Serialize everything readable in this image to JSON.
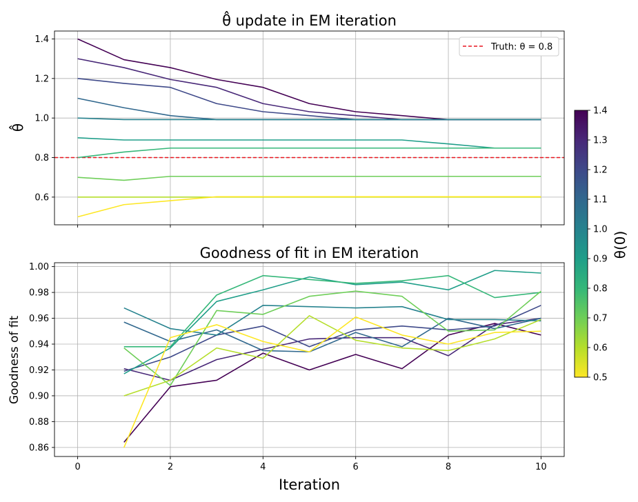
{
  "chart_data": [
    {
      "type": "line",
      "title": "θ̂ update in EM iteration",
      "xlabel": "",
      "ylabel": "θ̂",
      "xlim": [
        -0.5,
        10.5
      ],
      "ylim": [
        0.46,
        1.44
      ],
      "xticks": [
        0,
        2,
        4,
        6,
        8,
        10
      ],
      "yticks": [
        0.6,
        0.8,
        1.0,
        1.2,
        1.4
      ],
      "ytick_labels": [
        "0.6",
        "0.8",
        "1.0",
        "1.2",
        "1.4"
      ],
      "grid": true,
      "legend": {
        "position": "top-right",
        "label": "Truth: θ = 0.8"
      },
      "reference_line": {
        "y": 0.8,
        "color": "#e8141e",
        "style": "dashed"
      },
      "x": [
        0,
        1,
        2,
        3,
        4,
        5,
        6,
        7,
        8,
        9,
        10
      ],
      "series": [
        {
          "theta0": 1.4,
          "values": [
            1.4,
            1.295,
            1.255,
            1.195,
            1.155,
            1.073,
            1.032,
            1.012,
            0.992,
            0.992,
            0.992
          ]
        },
        {
          "theta0": 1.3,
          "values": [
            1.3,
            1.255,
            1.195,
            1.155,
            1.073,
            1.032,
            1.012,
            0.992,
            0.992,
            0.992,
            0.992
          ]
        },
        {
          "theta0": 1.2,
          "values": [
            1.2,
            1.175,
            1.155,
            1.073,
            1.032,
            1.012,
            0.992,
            0.992,
            0.992,
            0.992,
            0.992
          ]
        },
        {
          "theta0": 1.1,
          "values": [
            1.1,
            1.052,
            1.012,
            0.992,
            0.992,
            0.992,
            0.992,
            0.992,
            0.992,
            0.992,
            0.992
          ]
        },
        {
          "theta0": 1.0,
          "values": [
            1.0,
            0.992,
            0.992,
            0.992,
            0.992,
            0.992,
            0.992,
            0.992,
            0.992,
            0.992,
            0.992
          ]
        },
        {
          "theta0": 0.9,
          "values": [
            0.9,
            0.889,
            0.889,
            0.889,
            0.889,
            0.889,
            0.889,
            0.889,
            0.869,
            0.848,
            0.848
          ]
        },
        {
          "theta0": 0.8,
          "values": [
            0.8,
            0.828,
            0.848,
            0.848,
            0.848,
            0.848,
            0.848,
            0.848,
            0.848,
            0.848,
            0.848
          ]
        },
        {
          "theta0": 0.7,
          "values": [
            0.7,
            0.685,
            0.705,
            0.705,
            0.705,
            0.705,
            0.705,
            0.705,
            0.705,
            0.705,
            0.705
          ]
        },
        {
          "theta0": 0.6,
          "values": [
            0.6,
            0.6,
            0.6,
            0.6,
            0.6,
            0.6,
            0.6,
            0.6,
            0.6,
            0.6,
            0.6
          ]
        },
        {
          "theta0": 0.5,
          "values": [
            0.5,
            0.562,
            0.582,
            0.602,
            0.602,
            0.602,
            0.602,
            0.602,
            0.602,
            0.602,
            0.602
          ]
        }
      ]
    },
    {
      "type": "line",
      "title": "Goodness of fit in EM iteration",
      "xlabel": "Iteration",
      "ylabel": "Goodness of fit",
      "xlim": [
        -0.5,
        10.5
      ],
      "ylim": [
        0.853,
        1.003
      ],
      "xticks": [
        0,
        2,
        4,
        6,
        8,
        10
      ],
      "yticks": [
        0.86,
        0.88,
        0.9,
        0.92,
        0.94,
        0.96,
        0.98,
        1.0
      ],
      "ytick_labels": [
        "0.86",
        "0.88",
        "0.90",
        "0.92",
        "0.94",
        "0.96",
        "0.98",
        "1.00"
      ],
      "grid": true,
      "x": [
        1,
        2,
        3,
        4,
        5,
        6,
        7,
        8,
        9,
        10
      ],
      "series": [
        {
          "theta0": 1.4,
          "values": [
            0.864,
            0.907,
            0.912,
            0.933,
            0.92,
            0.932,
            0.921,
            0.947,
            0.956,
            0.947
          ]
        },
        {
          "theta0": 1.3,
          "values": [
            0.921,
            0.912,
            0.928,
            0.936,
            0.944,
            0.945,
            0.945,
            0.931,
            0.955,
            0.96
          ]
        },
        {
          "theta0": 1.2,
          "values": [
            0.919,
            0.93,
            0.947,
            0.954,
            0.938,
            0.951,
            0.954,
            0.951,
            0.954,
            0.97
          ]
        },
        {
          "theta0": 1.1,
          "values": [
            0.957,
            0.942,
            0.951,
            0.935,
            0.934,
            0.949,
            0.938,
            0.96,
            0.952,
            0.96
          ]
        },
        {
          "theta0": 1.0,
          "values": [
            0.968,
            0.952,
            0.947,
            0.97,
            0.969,
            0.968,
            0.969,
            0.959,
            0.959,
            0.958
          ]
        },
        {
          "theta0": 0.9,
          "values": [
            0.917,
            0.937,
            0.973,
            0.982,
            0.992,
            0.986,
            0.988,
            0.982,
            0.997,
            0.995
          ]
        },
        {
          "theta0": 0.8,
          "values": [
            0.938,
            0.938,
            0.978,
            0.993,
            0.99,
            0.987,
            0.989,
            0.993,
            0.976,
            0.98
          ]
        },
        {
          "theta0": 0.7,
          "values": [
            0.937,
            0.908,
            0.966,
            0.963,
            0.977,
            0.981,
            0.977,
            0.95,
            0.951,
            0.981
          ]
        },
        {
          "theta0": 0.6,
          "values": [
            0.9,
            0.912,
            0.937,
            0.929,
            0.962,
            0.943,
            0.937,
            0.935,
            0.944,
            0.959
          ]
        },
        {
          "theta0": 0.5,
          "values": [
            0.86,
            0.945,
            0.955,
            0.942,
            0.934,
            0.961,
            0.947,
            0.94,
            0.949,
            0.95
          ]
        }
      ]
    }
  ],
  "colorbar": {
    "label": "θ(0)",
    "min": 0.5,
    "max": 1.4,
    "ticks": [
      0.5,
      0.6,
      0.7,
      0.8,
      0.9,
      1.0,
      1.1,
      1.2,
      1.3,
      1.4
    ],
    "tick_labels": [
      "0.5",
      "0.6",
      "0.7",
      "0.8",
      "0.9",
      "1.0",
      "1.1",
      "1.2",
      "1.3",
      "1.4"
    ],
    "colormap": "viridis",
    "stops": [
      "#fde725",
      "#b5de2b",
      "#6ece58",
      "#35b779",
      "#1f9e89",
      "#26828e",
      "#31688e",
      "#3e4989",
      "#482878",
      "#440154"
    ]
  }
}
